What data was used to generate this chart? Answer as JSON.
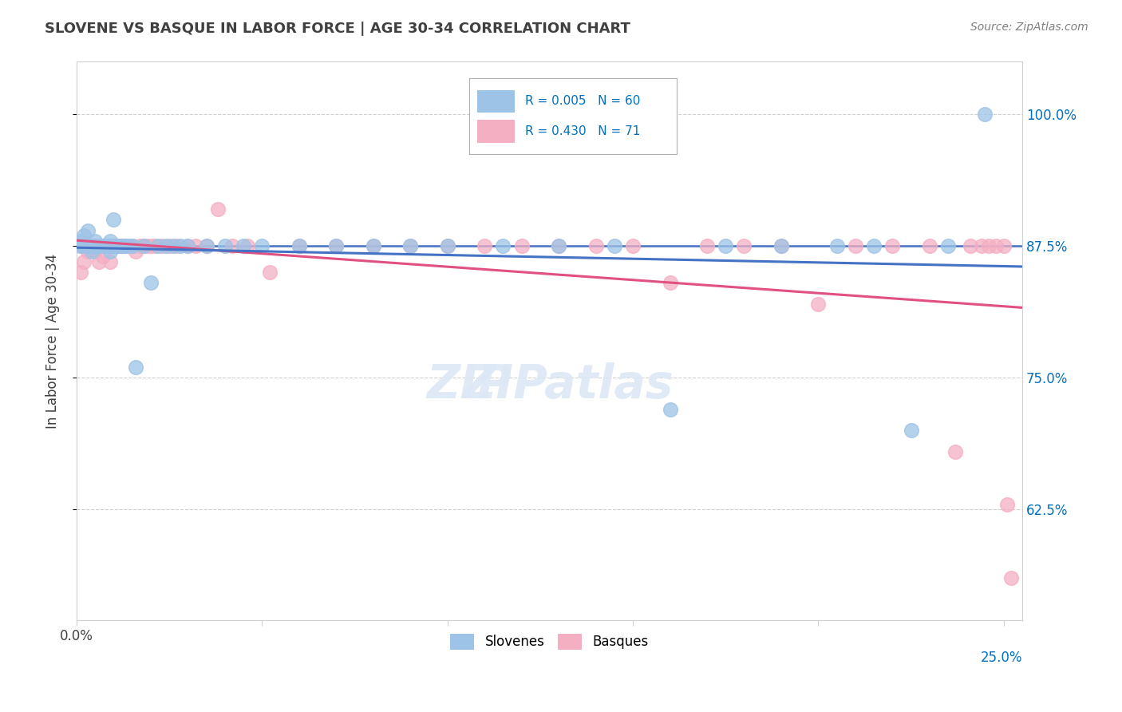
{
  "title": "SLOVENE VS BASQUE IN LABOR FORCE | AGE 30-34 CORRELATION CHART",
  "source_text": "Source: ZipAtlas.com",
  "ylabel": "In Labor Force | Age 30-34",
  "xlim": [
    0.0,
    0.255
  ],
  "ylim": [
    0.52,
    1.05
  ],
  "yticks": [
    0.625,
    0.75,
    0.875,
    1.0
  ],
  "yticklabels": [
    "62.5%",
    "75.0%",
    "87.5%",
    "100.0%"
  ],
  "hline_y": 0.875,
  "hline_color": "#4472c4",
  "slovene_color": "#9dc3e6",
  "basque_color": "#f4afc3",
  "slovene_r": 0.005,
  "slovene_n": 60,
  "basque_r": 0.43,
  "basque_n": 71,
  "r_color": "#0070c0",
  "title_color": "#404040",
  "source_color": "#808080",
  "ylabel_color": "#404040",
  "tick_color": "#404040",
  "grid_color": "#d0d0d0",
  "background_color": "#ffffff",
  "slovene_x": [
    0.001,
    0.001,
    0.002,
    0.002,
    0.003,
    0.003,
    0.003,
    0.004,
    0.004,
    0.005,
    0.005,
    0.005,
    0.006,
    0.006,
    0.006,
    0.007,
    0.007,
    0.008,
    0.008,
    0.009,
    0.009,
    0.009,
    0.01,
    0.01,
    0.011,
    0.011,
    0.012,
    0.012,
    0.013,
    0.013,
    0.014,
    0.015,
    0.016,
    0.018,
    0.02,
    0.022,
    0.024,
    0.026,
    0.028,
    0.03,
    0.035,
    0.04,
    0.045,
    0.05,
    0.06,
    0.07,
    0.08,
    0.09,
    0.1,
    0.115,
    0.13,
    0.145,
    0.16,
    0.175,
    0.19,
    0.205,
    0.215,
    0.225,
    0.235,
    0.245
  ],
  "slovene_y": [
    0.875,
    0.88,
    0.875,
    0.885,
    0.875,
    0.875,
    0.89,
    0.875,
    0.87,
    0.875,
    0.875,
    0.88,
    0.875,
    0.875,
    0.875,
    0.875,
    0.875,
    0.875,
    0.875,
    0.88,
    0.87,
    0.875,
    0.875,
    0.9,
    0.875,
    0.875,
    0.875,
    0.875,
    0.875,
    0.875,
    0.875,
    0.875,
    0.76,
    0.875,
    0.84,
    0.875,
    0.875,
    0.875,
    0.875,
    0.875,
    0.875,
    0.875,
    0.875,
    0.875,
    0.875,
    0.875,
    0.875,
    0.875,
    0.875,
    0.875,
    0.875,
    0.875,
    0.72,
    0.875,
    0.875,
    0.875,
    0.875,
    0.7,
    0.875,
    1.0
  ],
  "basque_x": [
    0.001,
    0.001,
    0.002,
    0.002,
    0.003,
    0.003,
    0.004,
    0.004,
    0.005,
    0.005,
    0.006,
    0.006,
    0.006,
    0.007,
    0.007,
    0.007,
    0.008,
    0.008,
    0.009,
    0.009,
    0.01,
    0.01,
    0.011,
    0.011,
    0.012,
    0.012,
    0.013,
    0.014,
    0.015,
    0.016,
    0.017,
    0.018,
    0.019,
    0.02,
    0.021,
    0.023,
    0.025,
    0.027,
    0.03,
    0.032,
    0.035,
    0.038,
    0.042,
    0.046,
    0.052,
    0.06,
    0.07,
    0.08,
    0.09,
    0.1,
    0.11,
    0.12,
    0.13,
    0.14,
    0.15,
    0.16,
    0.17,
    0.18,
    0.19,
    0.2,
    0.21,
    0.22,
    0.23,
    0.237,
    0.241,
    0.244,
    0.246,
    0.248,
    0.25,
    0.251,
    0.252
  ],
  "basque_y": [
    0.875,
    0.85,
    0.875,
    0.86,
    0.875,
    0.87,
    0.875,
    0.875,
    0.875,
    0.87,
    0.875,
    0.875,
    0.86,
    0.875,
    0.875,
    0.865,
    0.875,
    0.875,
    0.875,
    0.86,
    0.875,
    0.875,
    0.875,
    0.875,
    0.875,
    0.875,
    0.875,
    0.875,
    0.875,
    0.87,
    0.875,
    0.875,
    0.875,
    0.875,
    0.875,
    0.875,
    0.875,
    0.875,
    0.875,
    0.875,
    0.875,
    0.91,
    0.875,
    0.875,
    0.85,
    0.875,
    0.875,
    0.875,
    0.875,
    0.875,
    0.875,
    0.875,
    0.875,
    0.875,
    0.875,
    0.84,
    0.875,
    0.875,
    0.875,
    0.82,
    0.875,
    0.875,
    0.875,
    0.68,
    0.875,
    0.875,
    0.875,
    0.875,
    0.875,
    0.63,
    0.56
  ]
}
